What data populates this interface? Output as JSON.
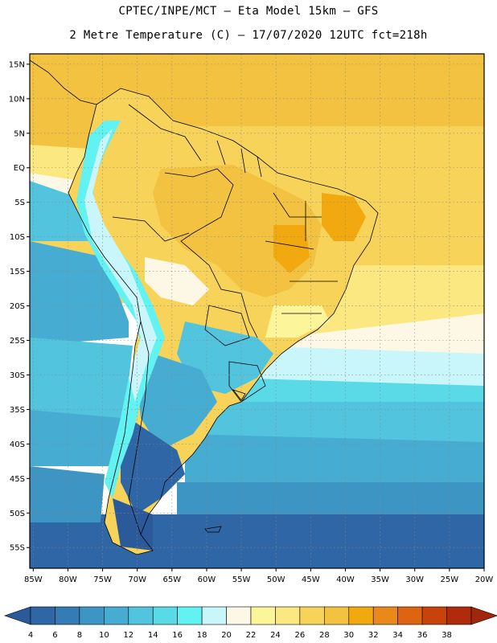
{
  "title_line1": "CPTEC/INPE/MCT –  Eta Model 15km – GFS",
  "title_line2": "2 Metre Temperature (C) – 17/07/2020 12UTC fct=218h",
  "lat_labels": [
    "15N",
    "10N",
    "5N",
    "EQ",
    "5S",
    "10S",
    "15S",
    "20S",
    "25S",
    "30S",
    "35S",
    "40S",
    "45S",
    "50S",
    "55S"
  ],
  "lat_values": [
    15,
    10,
    5,
    0,
    -5,
    -10,
    -15,
    -20,
    -25,
    -30,
    -35,
    -40,
    -45,
    -50,
    -55
  ],
  "lon_labels": [
    "85W",
    "80W",
    "75W",
    "70W",
    "65W",
    "60W",
    "55W",
    "50W",
    "45W",
    "40W",
    "35W",
    "30W",
    "25W",
    "20W"
  ],
  "lon_values": [
    -85,
    -80,
    -75,
    -70,
    -65,
    -60,
    -55,
    -50,
    -45,
    -40,
    -35,
    -30,
    -25,
    -20
  ],
  "map_extent": {
    "lon_min": -85.5,
    "lon_max": -20,
    "lat_min": -58,
    "lat_max": 16.5
  },
  "legend": {
    "values": [
      "4",
      "6",
      "8",
      "10",
      "12",
      "14",
      "16",
      "18",
      "20",
      "22",
      "24",
      "26",
      "28",
      "30",
      "32",
      "34",
      "36",
      "38"
    ],
    "colors": [
      "#2f66a6",
      "#347cb5",
      "#3d95c4",
      "#47acd2",
      "#52c4de",
      "#5ad9e6",
      "#62f2f2",
      "#c8f6fb",
      "#fdf8e6",
      "#fdf59a",
      "#fbe880",
      "#f7d35a",
      "#f3c240",
      "#f2a90f",
      "#e8891a",
      "#dd6410",
      "#c8420c",
      "#b02a0c"
    ],
    "under_color": "#2a5a9a",
    "over_color": "#a2260a"
  }
}
